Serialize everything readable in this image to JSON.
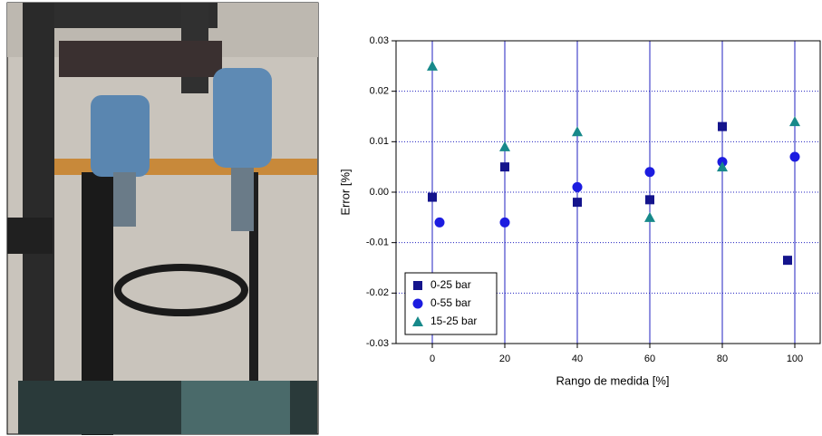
{
  "chart_data": {
    "type": "scatter",
    "xlabel": "Rango de medida [%]",
    "ylabel": "Error [%]",
    "xlim": [
      -10,
      107
    ],
    "ylim": [
      -0.03,
      0.03
    ],
    "xticks": [
      0,
      20,
      40,
      60,
      80,
      100
    ],
    "yticks": [
      -0.03,
      -0.02,
      -0.01,
      {
        "value": 0,
        "label": "0.00"
      },
      0.01,
      0.02,
      0.03
    ],
    "grid": true,
    "legend": "lower left",
    "series": [
      {
        "name": "0-25 bar",
        "color": "#14148c",
        "marker": "square",
        "x": [
          0,
          20,
          40,
          60,
          80,
          98
        ],
        "values": [
          -0.001,
          0.005,
          -0.002,
          -0.0015,
          0.013,
          -0.0135
        ]
      },
      {
        "name": "0-55 bar",
        "color": "#1c1ce0",
        "marker": "circle",
        "x": [
          2,
          20,
          40,
          60,
          80,
          100
        ],
        "values": [
          -0.006,
          -0.006,
          0.001,
          0.004,
          0.006,
          0.007
        ]
      },
      {
        "name": "15-25 bar",
        "color": "#17898a",
        "marker": "triangle",
        "x": [
          0,
          20,
          40,
          60,
          80,
          100
        ],
        "values": [
          0.025,
          0.009,
          0.012,
          -0.005,
          0.005,
          0.014
        ]
      }
    ]
  }
}
